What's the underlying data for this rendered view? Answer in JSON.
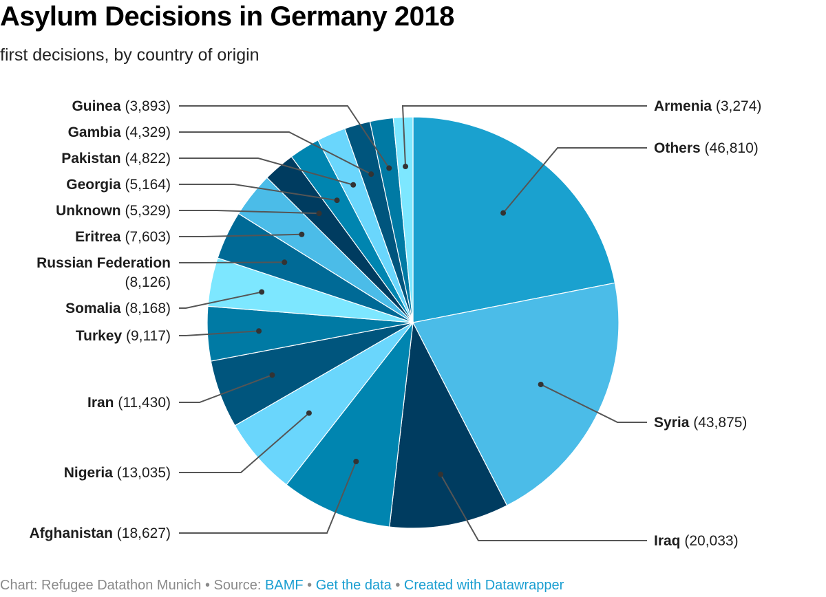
{
  "title": "Asylum Decisions in Germany 2018",
  "subtitle": "first decisions, by country of origin",
  "footer": {
    "chart_credit": "Chart: Refugee Datathon Munich",
    "sep1": " • Source: ",
    "source_link": "BAMF",
    "sep2": " • ",
    "get_data_link": "Get the data",
    "sep3": " • ",
    "created_with_link": "Created with Datawrapper"
  },
  "chart_data": {
    "type": "pie",
    "title": "Asylum Decisions in Germany 2018",
    "subtitle": "first decisions, by country of origin",
    "order": "clockwise from top",
    "slices": [
      {
        "label": "Others",
        "value": 46810,
        "value_text": "(46,810)",
        "color": "#1aa1cf"
      },
      {
        "label": "Syria",
        "value": 43875,
        "value_text": "(43,875)",
        "color": "#4bbce8"
      },
      {
        "label": "Iraq",
        "value": 20033,
        "value_text": "(20,033)",
        "color": "#003c60"
      },
      {
        "label": "Afghanistan",
        "value": 18627,
        "value_text": "(18,627)",
        "color": "#0085b0"
      },
      {
        "label": "Nigeria",
        "value": 13035,
        "value_text": "(13,035)",
        "color": "#6ad6fc"
      },
      {
        "label": "Iran",
        "value": 11430,
        "value_text": "(11,430)",
        "color": "#00557d"
      },
      {
        "label": "Turkey",
        "value": 9117,
        "value_text": "(9,117)",
        "color": "#007aa4"
      },
      {
        "label": "Somalia",
        "value": 8168,
        "value_text": "(8,168)",
        "color": "#7de7ff"
      },
      {
        "label": "Russian Federation",
        "value": 8126,
        "value_text": "(8,126)",
        "color": "#006a96"
      },
      {
        "label": "Eritrea",
        "value": 7603,
        "value_text": "(7,603)",
        "color": "#4bbce8"
      },
      {
        "label": "Unknown",
        "value": 5329,
        "value_text": "(5,329)",
        "color": "#003c60"
      },
      {
        "label": "Georgia",
        "value": 5164,
        "value_text": "(5,164)",
        "color": "#0085b0"
      },
      {
        "label": "Pakistan",
        "value": 4822,
        "value_text": "(4,822)",
        "color": "#6ad6fc"
      },
      {
        "label": "Gambia",
        "value": 4329,
        "value_text": "(4,329)",
        "color": "#00557d"
      },
      {
        "label": "Guinea",
        "value": 3893,
        "value_text": "(3,893)",
        "color": "#007aa4"
      },
      {
        "label": "Armenia",
        "value": 3274,
        "value_text": "(3,274)",
        "color": "#7de7ff"
      }
    ]
  }
}
